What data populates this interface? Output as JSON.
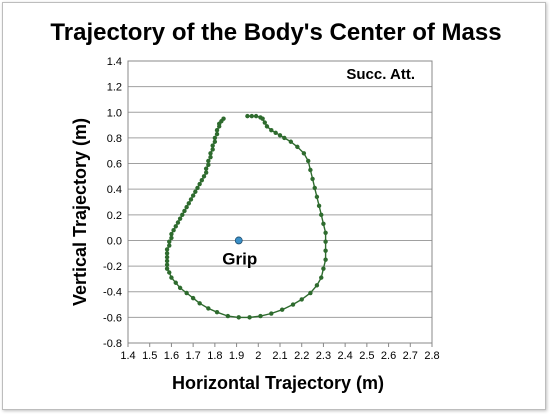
{
  "chart_data": {
    "type": "scatter",
    "title": "Trajectory of the Body's Center of Mass",
    "xlabel": "Horizontal Trajectory (m)",
    "ylabel": "Vertical Trajectory (m)",
    "xlim": [
      1.4,
      2.8
    ],
    "ylim": [
      -0.8,
      1.4
    ],
    "xticks": [
      "1.4",
      "1.5",
      "1.6",
      "1.7",
      "1.8",
      "1.9",
      "2",
      "2.1",
      "2.2",
      "2.3",
      "2.4",
      "2.5",
      "2.6",
      "2.7",
      "2.8"
    ],
    "yticks": [
      "1.4",
      "1.2",
      "1.0",
      "0.8",
      "0.6",
      "0.4",
      "0.2",
      "0.0",
      "-0.2",
      "-0.4",
      "-0.6",
      "-0.8"
    ],
    "grid": "horizontal",
    "annotation": "Succ. Att.",
    "series": [
      {
        "color": "#2e6b2e",
        "points": [
          [
            1.84,
            0.95
          ],
          [
            1.83,
            0.93
          ],
          [
            1.82,
            0.91
          ],
          [
            1.82,
            0.89
          ],
          [
            1.81,
            0.86
          ],
          [
            1.81,
            0.83
          ],
          [
            1.8,
            0.8
          ],
          [
            1.8,
            0.77
          ],
          [
            1.79,
            0.74
          ],
          [
            1.79,
            0.71
          ],
          [
            1.78,
            0.68
          ],
          [
            1.78,
            0.65
          ],
          [
            1.77,
            0.62
          ],
          [
            1.77,
            0.59
          ],
          [
            1.76,
            0.56
          ],
          [
            1.76,
            0.53
          ],
          [
            1.75,
            0.5
          ],
          [
            1.74,
            0.47
          ],
          [
            1.73,
            0.44
          ],
          [
            1.72,
            0.41
          ],
          [
            1.71,
            0.38
          ],
          [
            1.7,
            0.35
          ],
          [
            1.69,
            0.32
          ],
          [
            1.68,
            0.29
          ],
          [
            1.67,
            0.26
          ],
          [
            1.66,
            0.23
          ],
          [
            1.65,
            0.2
          ],
          [
            1.64,
            0.17
          ],
          [
            1.63,
            0.14
          ],
          [
            1.62,
            0.11
          ],
          [
            1.61,
            0.08
          ],
          [
            1.6,
            0.05
          ],
          [
            1.6,
            0.02
          ],
          [
            1.59,
            -0.01
          ],
          [
            1.59,
            -0.04
          ],
          [
            1.58,
            -0.07
          ],
          [
            1.58,
            -0.1
          ],
          [
            1.58,
            -0.13
          ],
          [
            1.58,
            -0.16
          ],
          [
            1.58,
            -0.19
          ],
          [
            1.58,
            -0.22
          ],
          [
            1.59,
            -0.25
          ],
          [
            1.6,
            -0.29
          ],
          [
            1.62,
            -0.33
          ],
          [
            1.64,
            -0.37
          ],
          [
            1.67,
            -0.41
          ],
          [
            1.7,
            -0.45
          ],
          [
            1.73,
            -0.49
          ],
          [
            1.77,
            -0.53
          ],
          [
            1.81,
            -0.56
          ],
          [
            1.86,
            -0.59
          ],
          [
            1.91,
            -0.6
          ],
          [
            1.96,
            -0.6
          ],
          [
            2.01,
            -0.59
          ],
          [
            2.06,
            -0.57
          ],
          [
            2.11,
            -0.54
          ],
          [
            2.16,
            -0.5
          ],
          [
            2.2,
            -0.46
          ],
          [
            2.24,
            -0.41
          ],
          [
            2.27,
            -0.35
          ],
          [
            2.29,
            -0.29
          ],
          [
            2.3,
            -0.22
          ],
          [
            2.31,
            -0.15
          ],
          [
            2.31,
            -0.08
          ],
          [
            2.31,
            -0.01
          ],
          [
            2.31,
            0.06
          ],
          [
            2.3,
            0.13
          ],
          [
            2.29,
            0.2
          ],
          [
            2.28,
            0.27
          ],
          [
            2.27,
            0.34
          ],
          [
            2.26,
            0.41
          ],
          [
            2.25,
            0.48
          ],
          [
            2.24,
            0.55
          ],
          [
            2.23,
            0.62
          ],
          [
            2.21,
            0.68
          ],
          [
            2.18,
            0.73
          ],
          [
            2.15,
            0.77
          ],
          [
            2.12,
            0.8
          ],
          [
            2.1,
            0.82
          ],
          [
            2.08,
            0.84
          ],
          [
            2.06,
            0.86
          ],
          [
            2.04,
            0.89
          ],
          [
            2.03,
            0.92
          ],
          [
            2.02,
            0.95
          ],
          [
            2.01,
            0.96
          ],
          [
            1.99,
            0.97
          ],
          [
            1.97,
            0.97
          ],
          [
            1.95,
            0.97
          ]
        ]
      }
    ],
    "marker": {
      "label": "Grip",
      "x": 1.91,
      "y": 0.0,
      "color": "#3a8fc7"
    }
  }
}
